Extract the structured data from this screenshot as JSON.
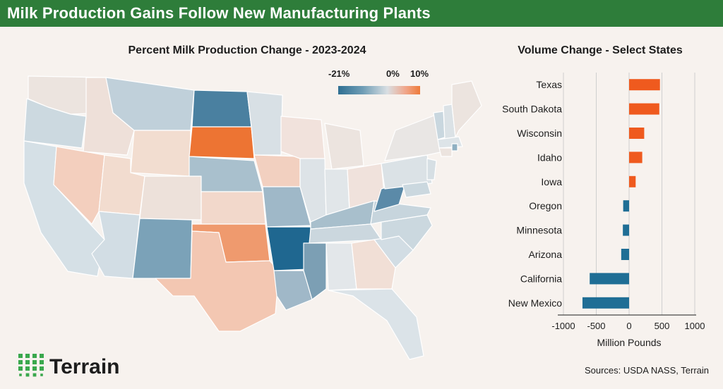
{
  "header": {
    "title": "Milk Production Gains Follow New Manufacturing Plants"
  },
  "map": {
    "title": "Percent Milk Production Change - 2023-2024",
    "legend": {
      "min_label": "-21%",
      "mid_label": "0%",
      "max_label": "10%"
    }
  },
  "chart_data": {
    "type": "bar",
    "orientation": "horizontal",
    "title": "Volume Change - Select States",
    "xlabel": "Million Pounds",
    "ylabel": "",
    "categories": [
      "Texas",
      "South Dakota",
      "Wisconsin",
      "Idaho",
      "Iowa",
      "Oregon",
      "Minnesota",
      "Arizona",
      "California",
      "New Mexico"
    ],
    "values": [
      470,
      460,
      230,
      200,
      100,
      -90,
      -95,
      -120,
      -600,
      -710
    ],
    "xlim": [
      -1000,
      1000
    ],
    "xticks": [
      "-1000",
      "-500",
      "0",
      "500",
      "1000"
    ],
    "grid": true,
    "positive_color": "#ef5a1e",
    "negative_color": "#1f6e95"
  },
  "footer": {
    "logo_text": "Terrain",
    "sources": "Sources: USDA NASS, Terrain"
  }
}
